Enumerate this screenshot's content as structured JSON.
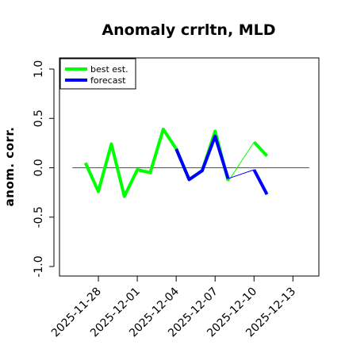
{
  "chart_data": {
    "type": "line",
    "title": "Anomaly crrltn, MLD",
    "xlabel": "",
    "ylabel": "anom. corr.",
    "ylim": [
      -1.1,
      1.1
    ],
    "yticks": [
      -1.0,
      -0.5,
      0.0,
      0.5,
      1.0
    ],
    "ytick_labels": [
      "-1.0",
      "-0.5",
      "0.0",
      "0.5",
      "1.0"
    ],
    "xlim": [
      "2025-11-25",
      "2025-12-15"
    ],
    "xticks": [
      "2025-11-28",
      "2025-12-01",
      "2025-12-04",
      "2025-12-07",
      "2025-12-10",
      "2025-12-13"
    ],
    "highlight_tick": "2025-12-04",
    "highlight_color": "#228B22",
    "reference_line": 0.0,
    "grid": false,
    "legend_position": "top-left",
    "colors": {
      "best_est": "#00ff00",
      "forecast": "#0000ff"
    },
    "series": [
      {
        "name": "best est.",
        "color": "#00ff00",
        "thick": [
          [
            "2025-11-27",
            0.05
          ],
          [
            "2025-11-28",
            -0.24
          ],
          [
            "2025-11-29",
            0.24
          ],
          [
            "2025-11-30",
            -0.29
          ],
          [
            "2025-12-01",
            -0.02
          ],
          [
            "2025-12-02",
            -0.05
          ],
          [
            "2025-12-03",
            0.39
          ],
          [
            "2025-12-04",
            0.19
          ],
          [
            "2025-12-05",
            -0.12
          ],
          [
            "2025-12-06",
            -0.03
          ],
          [
            "2025-12-07",
            0.37
          ],
          [
            "2025-12-08",
            -0.13
          ]
        ],
        "thin": [
          [
            "2025-12-08",
            -0.14
          ],
          [
            "2025-12-10",
            0.26
          ]
        ],
        "thick_tail": [
          [
            "2025-12-10",
            0.26
          ],
          [
            "2025-12-11",
            0.12
          ]
        ]
      },
      {
        "name": "forecast",
        "color": "#0000ff",
        "thick": [
          [
            "2025-12-04",
            0.19
          ],
          [
            "2025-12-05",
            -0.12
          ],
          [
            "2025-12-06",
            -0.03
          ],
          [
            "2025-12-07",
            0.32
          ],
          [
            "2025-12-08",
            -0.11
          ]
        ],
        "thin": [
          [
            "2025-12-08",
            -0.11
          ],
          [
            "2025-12-10",
            -0.02
          ]
        ],
        "thick_tail": [
          [
            "2025-12-10",
            -0.02
          ],
          [
            "2025-12-11",
            -0.27
          ]
        ]
      }
    ]
  }
}
